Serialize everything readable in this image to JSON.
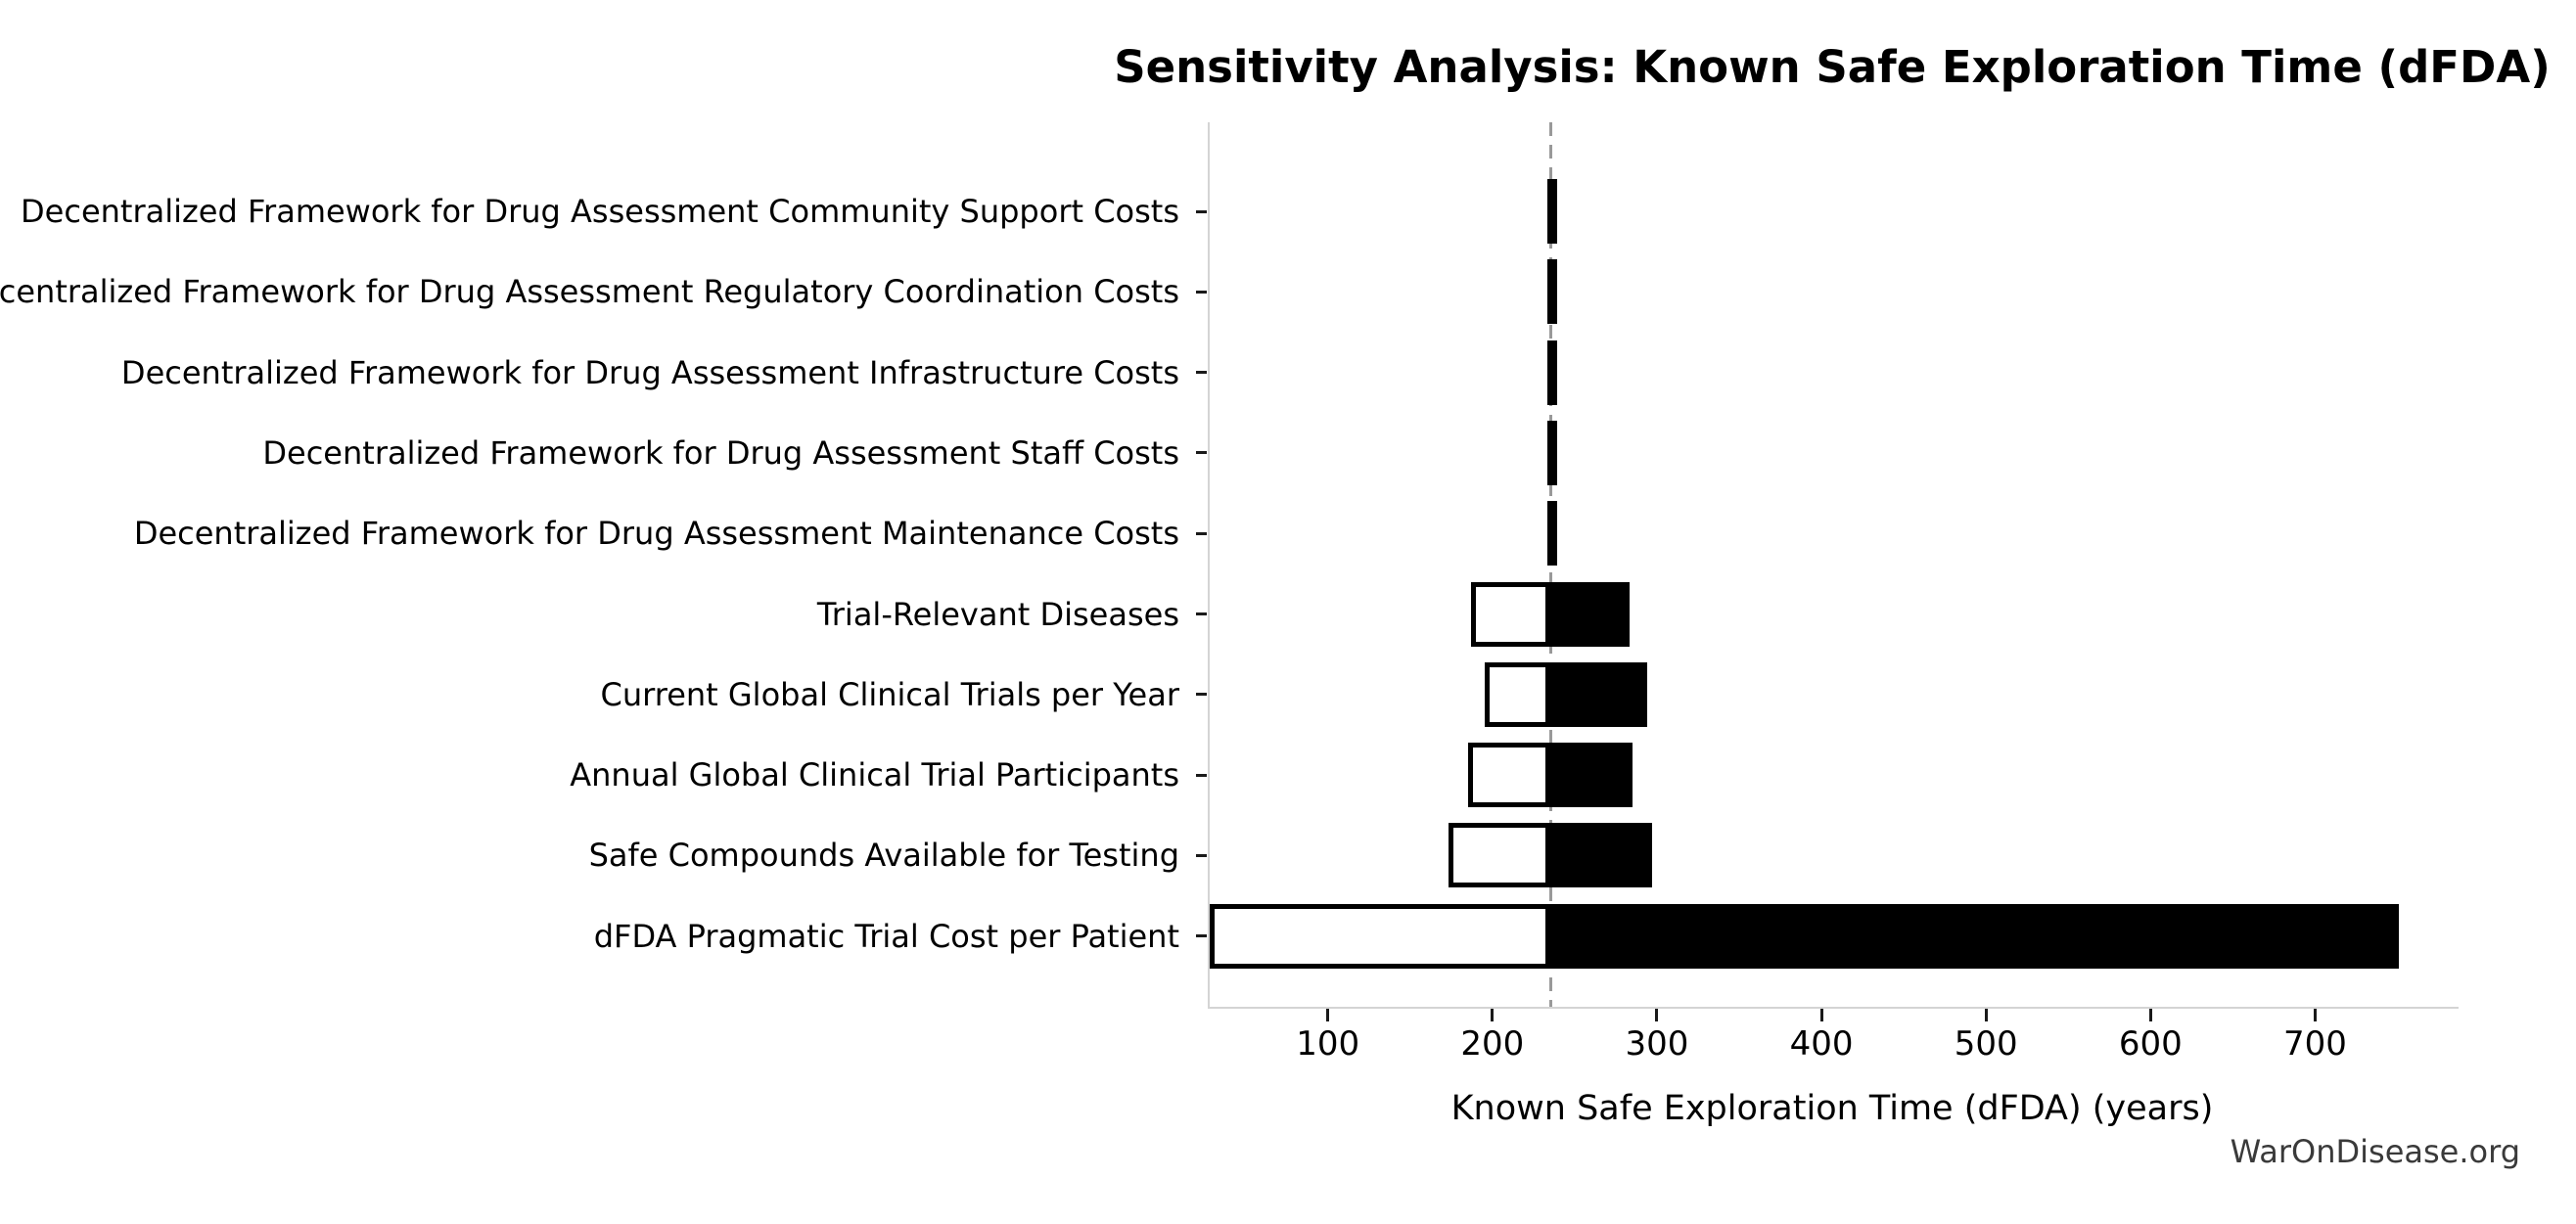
{
  "title": "Sensitivity Analysis: Known Safe Exploration Time (dFDA)",
  "watermark": "WarOnDisease.org",
  "colors": {
    "bar_low_fill": "#ffffff",
    "bar_low_edge": "#000000",
    "bar_high_fill": "#000000",
    "baseline_dash": "#999999",
    "axis_spine": "#d4d4d4",
    "tick": "#1a1a1a",
    "text": "#000000",
    "watermark_text": "#3a3a3a",
    "background": "#ffffff"
  },
  "chart_data": {
    "type": "bar",
    "subtype": "tornado-sensitivity",
    "orientation": "horizontal",
    "title": "Sensitivity Analysis: Known Safe Exploration Time (dFDA)",
    "xlabel": "Known Safe Exploration Time (dFDA) (years)",
    "ylabel": "",
    "grid": false,
    "legend": "none",
    "baseline": 234,
    "xlim": [
      27,
      786
    ],
    "x_ticks": [
      100,
      200,
      300,
      400,
      500,
      600,
      700
    ],
    "categories": [
      "Decentralized Framework for Drug Assessment Community Support Costs",
      "Decentralized Framework for Drug Assessment Regulatory Coordination Costs",
      "Decentralized Framework for Drug Assessment Infrastructure Costs",
      "Decentralized Framework for Drug Assessment Staff Costs",
      "Decentralized Framework for Drug Assessment Maintenance Costs",
      "Trial-Relevant Diseases",
      "Current Global Clinical Trials per Year",
      "Annual Global Clinical Trial Participants",
      "Safe Compounds Available for Testing",
      "dFDA Pragmatic Trial Cost per Patient"
    ],
    "series": [
      {
        "name": "low",
        "values": [
          232,
          232,
          232,
          232,
          232,
          186,
          194,
          184,
          172,
          27
        ]
      },
      {
        "name": "high",
        "values": [
          236,
          236,
          236,
          236,
          236,
          282,
          293,
          284,
          296,
          750
        ]
      }
    ]
  }
}
